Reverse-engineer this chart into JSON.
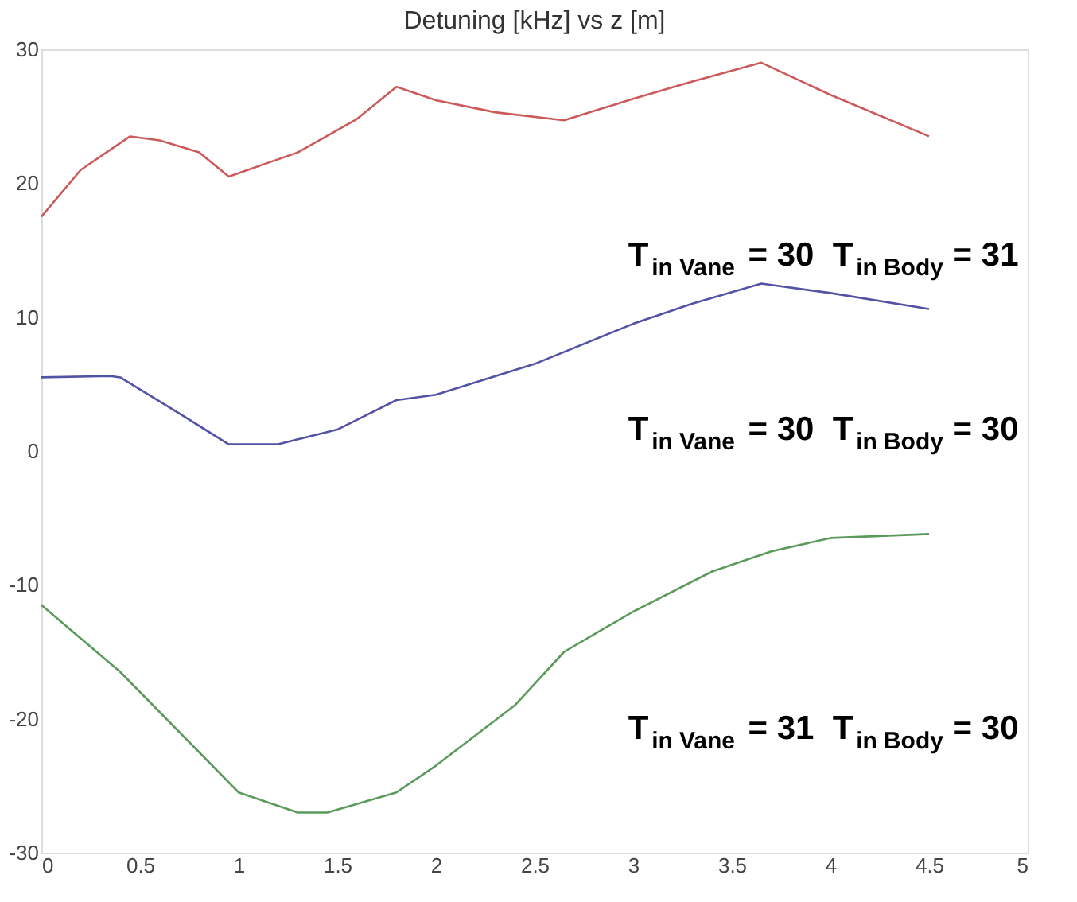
{
  "chart_data": {
    "type": "line",
    "title": "Detuning [kHz] vs z [m]",
    "xlim": [
      0,
      5
    ],
    "xticks": [
      0,
      0.5,
      1,
      1.5,
      2,
      2.5,
      3,
      3.5,
      4,
      4.5,
      5
    ],
    "ylim": [
      -30,
      30
    ],
    "yticks": [
      -30,
      -20,
      -10,
      0,
      10,
      20,
      30
    ],
    "grid": false,
    "marker": "none",
    "line_style": "solid",
    "series": [
      {
        "color": "#cc5a5a",
        "x": [
          0,
          0.2,
          0.45,
          0.6,
          0.8,
          0.95,
          1.3,
          1.6,
          1.8,
          2.0,
          2.3,
          2.65,
          3.0,
          3.3,
          3.65,
          4.0,
          4.5
        ],
        "values": [
          17.5,
          21,
          23.5,
          23.2,
          22.3,
          20.5,
          22.3,
          24.8,
          27.2,
          26.2,
          25.3,
          24.7,
          26.3,
          27.6,
          29,
          26.6,
          23.5
        ]
      },
      {
        "color": "#5252a6",
        "x": [
          0,
          0.35,
          0.4,
          0.7,
          0.95,
          1.2,
          1.5,
          1.8,
          2.0,
          2.5,
          3.0,
          3.3,
          3.65,
          4.0,
          4.5
        ],
        "values": [
          5.5,
          5.6,
          5.5,
          2.8,
          0.5,
          0.5,
          1.6,
          3.8,
          4.2,
          6.5,
          9.5,
          11,
          12.5,
          11.8,
          10.6
        ]
      },
      {
        "color": "#5a9a5a",
        "x": [
          0,
          0.4,
          0.7,
          1.0,
          1.3,
          1.45,
          1.8,
          2.0,
          2.4,
          2.65,
          3.0,
          3.4,
          3.7,
          4.0,
          4.5
        ],
        "values": [
          -11.5,
          -16.5,
          -21,
          -25.5,
          -27,
          -27,
          -25.5,
          -23.5,
          -19,
          -15,
          -12,
          -9,
          -7.5,
          -6.5,
          -6.2
        ]
      }
    ],
    "annotations": [
      "T$_{in Vane}$ = 30  T$_{in Body}$ = 31",
      "T$_{in Vane}$ = 30  T$_{in Body}$ = 30",
      "T$_{in Vane}$ = 31  T$_{in Body}$ = 30"
    ]
  }
}
